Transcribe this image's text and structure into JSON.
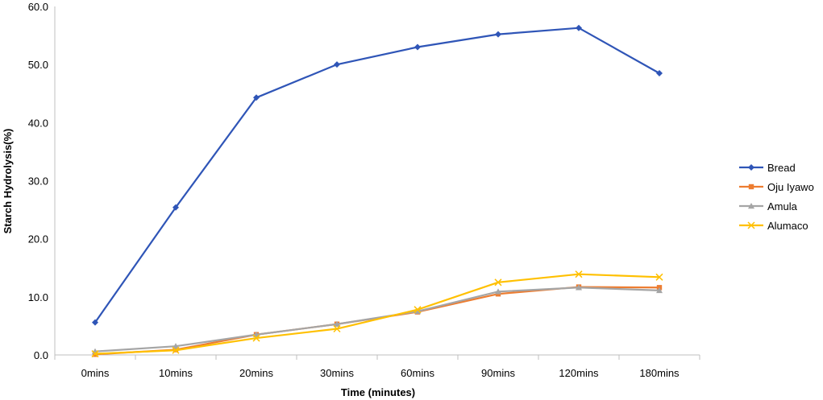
{
  "chart_data": {
    "type": "line",
    "title": "",
    "xlabel": "Time (minutes)",
    "ylabel": "Starch Hydrolysis(%)",
    "categories": [
      "0mins",
      "10mins",
      "20mins",
      "30mins",
      "60mins",
      "90mins",
      "120mins",
      "180mins"
    ],
    "ylim": [
      0,
      60
    ],
    "yticks": [
      "0.0",
      "10.0",
      "20.0",
      "30.0",
      "40.0",
      "50.0",
      "60.0"
    ],
    "grid": false,
    "legend_position": "right",
    "series": [
      {
        "name": "Bread",
        "color": "#2F55B7",
        "marker": "diamond",
        "values": [
          5.6,
          25.4,
          44.3,
          50.0,
          53.0,
          55.2,
          56.3,
          48.5
        ]
      },
      {
        "name": "Oju Iyawo",
        "color": "#ED7D31",
        "marker": "square",
        "values": [
          0.1,
          0.9,
          3.5,
          5.3,
          7.4,
          10.5,
          11.7,
          11.6
        ]
      },
      {
        "name": "Amula",
        "color": "#A5A5A5",
        "marker": "triangle",
        "values": [
          0.6,
          1.5,
          3.5,
          5.3,
          7.5,
          10.9,
          11.6,
          11.1
        ]
      },
      {
        "name": "Alumaco",
        "color": "#FFC000",
        "marker": "x",
        "values": [
          0.2,
          0.8,
          2.9,
          4.5,
          7.8,
          12.5,
          13.9,
          13.4
        ]
      }
    ]
  }
}
